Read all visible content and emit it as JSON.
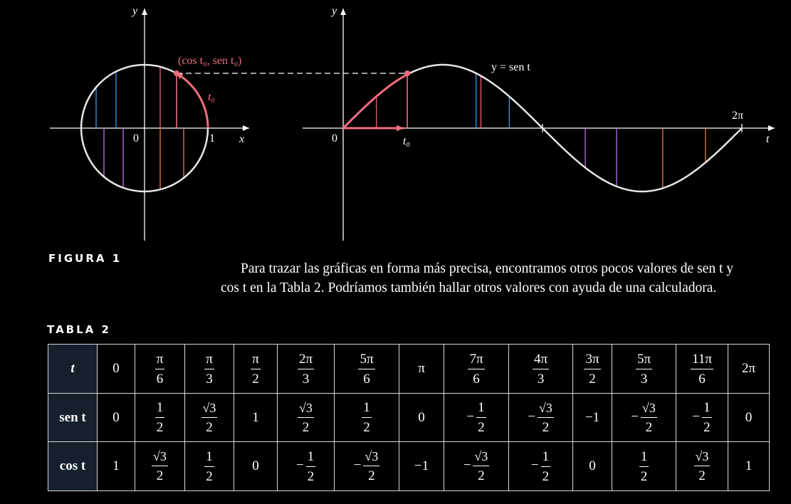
{
  "figure": {
    "circle_axis_labels": {
      "x": "x",
      "y": "y",
      "origin": "0",
      "one": "1"
    },
    "point_label": "(cos t₀, sen t₀)",
    "arc_label": "t₀",
    "graph_axis_labels": {
      "t": "t",
      "y": "y",
      "origin": "0",
      "t0": "t₀",
      "two_pi": "2π"
    },
    "curve_label": "y = sen t",
    "colors": {
      "highlight": "#f26d7d",
      "blue": "#3a8fd8",
      "red": "#e05a6e",
      "purple": "#b36bd8",
      "orange": "#e0733a",
      "curve": "#e6e6e6"
    }
  },
  "figure_caption": "FIGURA 1",
  "paragraph": {
    "line1": "Para trazar las gráficas en forma más precisa, encontramos otros pocos valores de sen t y",
    "line2": "cos t en la Tabla 2. Podríamos también hallar otros valores con ayuda de una calculadora."
  },
  "table_caption": "TABLA 2",
  "table": {
    "row_headers": [
      "t",
      "sen t",
      "cos t"
    ],
    "t": [
      {
        "n": "0"
      },
      {
        "n": "π",
        "d": "6"
      },
      {
        "n": "π",
        "d": "3"
      },
      {
        "n": "π",
        "d": "2"
      },
      {
        "n": "2π",
        "d": "3"
      },
      {
        "n": "5π",
        "d": "6"
      },
      {
        "n": "π"
      },
      {
        "n": "7π",
        "d": "6"
      },
      {
        "n": "4π",
        "d": "3"
      },
      {
        "n": "3π",
        "d": "2"
      },
      {
        "n": "5π",
        "d": "3"
      },
      {
        "n": "11π",
        "d": "6"
      },
      {
        "n": "2π"
      }
    ],
    "sen": [
      {
        "n": "0"
      },
      {
        "n": "1",
        "d": "2"
      },
      {
        "n": "√3",
        "d": "2",
        "rad": true
      },
      {
        "n": "1"
      },
      {
        "n": "√3",
        "d": "2",
        "rad": true
      },
      {
        "n": "1",
        "d": "2"
      },
      {
        "n": "0"
      },
      {
        "s": "−",
        "n": "1",
        "d": "2"
      },
      {
        "s": "−",
        "n": "√3",
        "d": "2",
        "rad": true
      },
      {
        "n": "−1"
      },
      {
        "s": "−",
        "n": "√3",
        "d": "2",
        "rad": true
      },
      {
        "s": "−",
        "n": "1",
        "d": "2"
      },
      {
        "n": "0"
      }
    ],
    "cos": [
      {
        "n": "1"
      },
      {
        "n": "√3",
        "d": "2",
        "rad": true
      },
      {
        "n": "1",
        "d": "2"
      },
      {
        "n": "0"
      },
      {
        "s": "−",
        "n": "1",
        "d": "2"
      },
      {
        "s": "−",
        "n": "√3",
        "d": "2",
        "rad": true
      },
      {
        "n": "−1"
      },
      {
        "s": "−",
        "n": "√3",
        "d": "2",
        "rad": true
      },
      {
        "s": "−",
        "n": "1",
        "d": "2"
      },
      {
        "n": "0"
      },
      {
        "n": "1",
        "d": "2"
      },
      {
        "n": "√3",
        "d": "2",
        "rad": true
      },
      {
        "n": "1"
      }
    ]
  }
}
